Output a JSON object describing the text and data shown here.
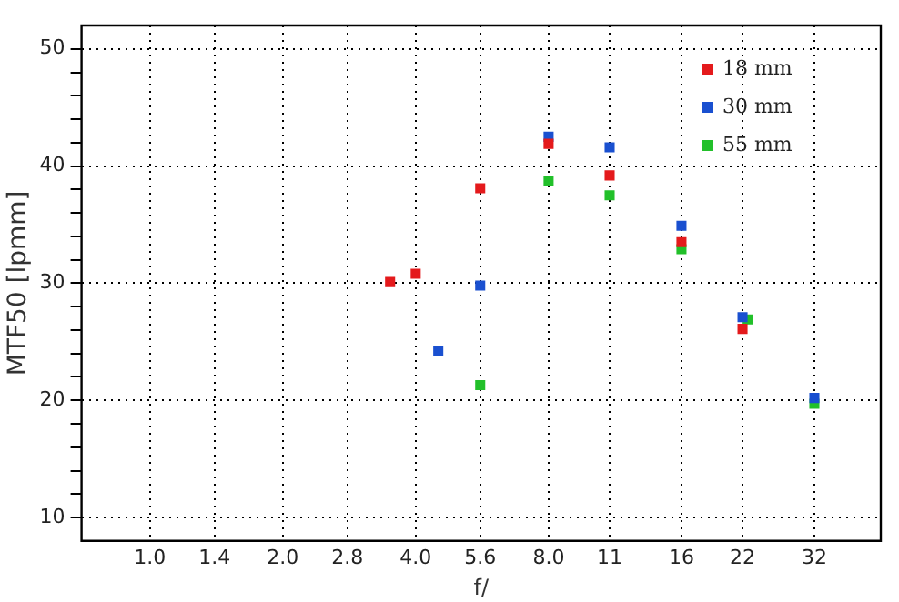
{
  "chart_data": {
    "type": "scatter",
    "xlabel": "f/",
    "ylabel": "MTF50 [lpmm]",
    "log": "x",
    "xlim": [
      0.707,
      45.25
    ],
    "ylim": [
      8,
      52
    ],
    "xticks": [
      {
        "value": 1,
        "label": "1.0"
      },
      1.4,
      {
        "value": 2,
        "label": "2.0"
      },
      2.8,
      {
        "value": 4,
        "label": "4.0"
      },
      5.6,
      {
        "value": 8,
        "label": "8.0"
      },
      11,
      16,
      22,
      32
    ],
    "yticks": [
      10,
      {
        "value": 12,
        "label": null
      },
      {
        "value": 14,
        "label": null
      },
      {
        "value": 16,
        "label": null
      },
      {
        "value": 18,
        "label": null
      },
      20,
      {
        "value": 22,
        "label": null
      },
      {
        "value": 24,
        "label": null
      },
      {
        "value": 26,
        "label": null
      },
      {
        "value": 28,
        "label": null
      },
      30,
      {
        "value": 32,
        "label": null
      },
      {
        "value": 34,
        "label": null
      },
      {
        "value": 36,
        "label": null
      },
      {
        "value": 38,
        "label": null
      },
      40,
      {
        "value": 42,
        "label": null
      },
      {
        "value": 44,
        "label": null
      },
      {
        "value": 46,
        "label": null
      },
      {
        "value": 48,
        "label": null
      },
      50
    ],
    "grid": true,
    "legend": "top right",
    "marker": "square",
    "series": [
      {
        "name": "18 mm",
        "color": "#e41a1c",
        "x": [
          3.5,
          4,
          5.6,
          8,
          11,
          16,
          22
        ],
        "values": [
          30.1,
          30.8,
          38.1,
          41.9,
          39.2,
          33.5,
          26.1
        ]
      },
      {
        "name": "30 mm",
        "color": "#1a50d0",
        "x": [
          4.5,
          5.6,
          8,
          11,
          16,
          22,
          32
        ],
        "values": [
          24.2,
          29.8,
          42.5,
          41.6,
          34.9,
          27.1,
          20.2
        ]
      },
      {
        "name": "55 mm",
        "color": "#22c02a",
        "x": [
          5.6,
          8,
          11,
          16,
          22.6,
          32
        ],
        "values": [
          21.3,
          38.7,
          37.5,
          32.9,
          26.9,
          19.7
        ]
      }
    ]
  }
}
